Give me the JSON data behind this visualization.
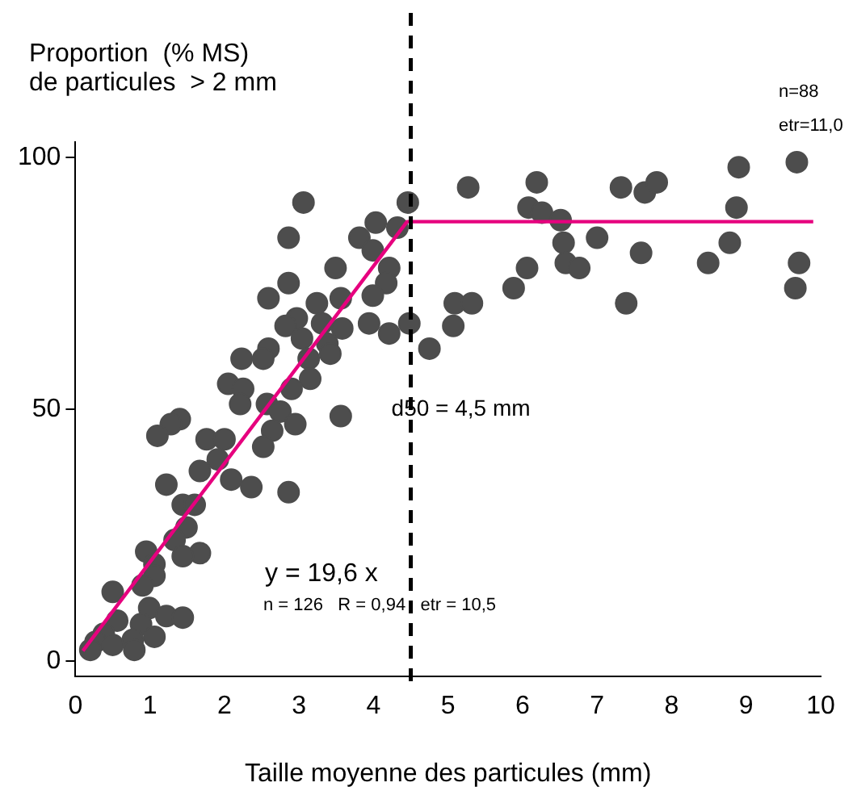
{
  "chart_data": {
    "type": "scatter",
    "ylabel": "Proportion  (% MS)\nde particules  > 2 mm",
    "xlabel": "Taille moyenne des particules (mm)",
    "xlim": [
      0,
      10
    ],
    "xticks": [
      0,
      1,
      2,
      3,
      4,
      5,
      6,
      7,
      8,
      9,
      10
    ],
    "ylim": [
      -3,
      103
    ],
    "yticks": [
      0,
      50,
      100
    ],
    "grid": false,
    "legend": false,
    "marker": "circle",
    "ref_lines": [
      {
        "axis": "x",
        "value": 4.5,
        "label": "d50 = 4,5 mm",
        "color": "#000000",
        "line_style": "dashed"
      }
    ],
    "annotations": [
      "n=88",
      "etr=11,0",
      "y = 19,6 x",
      "n = 126   R = 0,94   etr = 10,5"
    ],
    "series": [
      {
        "color": "#4d4d4d",
        "x": [
          5.27,
          6.19,
          6.08,
          6.26,
          6.51,
          6.55,
          6.58,
          6.76,
          7.0,
          7.32,
          7.64,
          7.8,
          7.59,
          7.39,
          6.06,
          5.88,
          5.09,
          5.32,
          5.07,
          4.75,
          8.49,
          8.78,
          8.87,
          8.9,
          9.68,
          9.71,
          9.66,
          3.06,
          4.46,
          2.86,
          4.03,
          3.81,
          4.32,
          3.99,
          3.49,
          4.21,
          4.17,
          2.86,
          2.59,
          3.24,
          3.56,
          3.99,
          2.97,
          2.82,
          3.31,
          3.58,
          3.94,
          4.21,
          4.48,
          3.04,
          3.38,
          2.59,
          2.23,
          2.52,
          3.13,
          3.42,
          3.15,
          2.05,
          2.25,
          2.9,
          2.21,
          2.57,
          2.75,
          2.95,
          3.56,
          2.64,
          1.76,
          2.0,
          2.52,
          1.91,
          1.67,
          2.09,
          2.36,
          2.86,
          1.4,
          1.28,
          1.1,
          1.22,
          1.44,
          1.6,
          1.49,
          1.33,
          0.95,
          1.67,
          1.44,
          1.06,
          1.06,
          0.5,
          0.9,
          0.99,
          1.22,
          1.44,
          0.88,
          0.56,
          1.06,
          0.77,
          0.38,
          0.27,
          0.79,
          0.2,
          0.5
        ],
        "values": [
          94,
          95,
          90,
          89,
          87.5,
          83,
          79,
          78,
          84,
          94,
          93,
          95,
          81,
          71,
          78,
          74,
          71,
          71,
          66.5,
          62,
          79,
          83,
          90,
          98,
          99,
          79,
          74,
          91,
          91,
          84,
          87,
          84,
          86,
          81.5,
          78,
          78,
          75,
          75,
          72,
          71,
          72,
          72.5,
          68,
          66.5,
          67,
          66,
          67,
          65,
          67,
          64,
          63,
          62,
          60,
          60,
          60,
          61,
          56,
          55,
          54,
          54,
          51,
          51,
          49.5,
          47,
          48.6,
          45.7,
          44,
          44,
          42.5,
          40,
          37.7,
          36,
          34.5,
          33.5,
          48,
          47,
          44.7,
          35,
          31,
          31,
          26.5,
          24,
          21.7,
          21.4,
          20.8,
          19.2,
          16.9,
          13.7,
          15,
          10.5,
          8.9,
          8.6,
          7.3,
          8,
          4.8,
          4.2,
          5.4,
          3.8,
          2.2,
          2.2,
          3.2
        ]
      },
      {
        "type": "line",
        "color": "#e6007e",
        "marker": "none",
        "line_style": "solid",
        "x": [
          0.1,
          4.45,
          9.9
        ],
        "values": [
          2,
          87.2,
          87.2
        ]
      }
    ]
  }
}
